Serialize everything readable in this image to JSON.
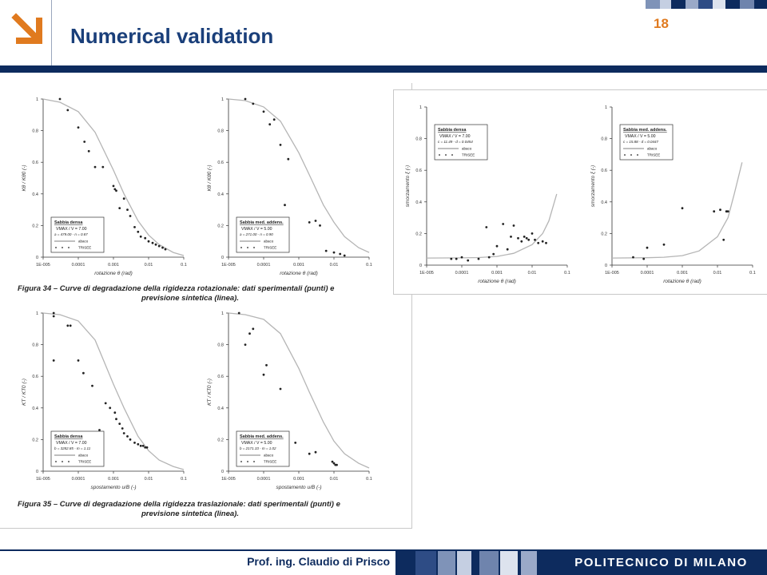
{
  "slide": {
    "title": "Numerical validation",
    "page_number": "18",
    "author": "Prof. ing. Claudio di Prisco",
    "institution": "POLITECNICO DI MILANO",
    "colors": {
      "navy": "#0d2b5e",
      "title": "#1a3f7a",
      "accent": "#e07a1f"
    }
  },
  "figures": {
    "fig34_caption_line1": "Figura 34 – Curve di degradazione della rigidezza rotazionale: dati sperimentali (punti) e",
    "fig34_caption_line2": "previsione sintetica (linea).",
    "fig35_caption_line1": "Figura 35 – Curve di degradazione della rigidezza traslazionale: dati sperimentali (punti) e",
    "fig35_caption_line2": "previsione sintetica (linea)."
  },
  "chart_data": [
    {
      "type": "scatter",
      "xlabel": "rotazione θ (rad)",
      "ylabel": "Kθ / Kθ0 (-)",
      "xscale": "log",
      "xlim": [
        1e-05,
        0.1
      ],
      "ylim": [
        0,
        1
      ],
      "x_ticks": [
        "1E-005",
        "0.0001",
        "0.001",
        "0.01",
        "0.1"
      ],
      "y_ticks": [
        "0",
        "0.2",
        "0.4",
        "0.6",
        "0.8",
        "1"
      ],
      "legend": {
        "title": "Sabbia densa",
        "line2": "VMAX / V = 7.00",
        "line3": "a = 479.00 - n = 0.87",
        "line_label": "abaco",
        "points_label": "TRISEE",
        "placement": "bottom-left"
      },
      "series": [
        {
          "name": "abaco",
          "kind": "line",
          "x": [
            1e-05,
            3e-05,
            0.0001,
            0.0003,
            0.001,
            0.002,
            0.005,
            0.01,
            0.02,
            0.05,
            0.1
          ],
          "y": [
            1.0,
            0.98,
            0.92,
            0.79,
            0.55,
            0.4,
            0.23,
            0.14,
            0.08,
            0.03,
            0.01
          ]
        },
        {
          "name": "TRISEE",
          "kind": "points",
          "x": [
            3e-05,
            5e-05,
            0.0001,
            0.00015,
            0.0002,
            0.0003,
            0.0005,
            0.001,
            0.0011,
            0.0012,
            0.0015,
            0.002,
            0.0025,
            0.003,
            0.004,
            0.005,
            0.006,
            0.008,
            0.01,
            0.013,
            0.016,
            0.02,
            0.025,
            0.03
          ],
          "y": [
            1.0,
            0.93,
            0.82,
            0.73,
            0.67,
            0.57,
            0.57,
            0.45,
            0.43,
            0.42,
            0.31,
            0.37,
            0.3,
            0.26,
            0.19,
            0.16,
            0.13,
            0.12,
            0.1,
            0.09,
            0.08,
            0.07,
            0.06,
            0.05
          ]
        }
      ]
    },
    {
      "type": "scatter",
      "xlabel": "rotazione θ (rad)",
      "ylabel": "Kθ / Kθ0 (-)",
      "xscale": "log",
      "xlim": [
        1e-05,
        0.1
      ],
      "ylim": [
        0,
        1
      ],
      "x_ticks": [
        "1E-005",
        "0.0001",
        "0.001",
        "0.01",
        "0.1"
      ],
      "y_ticks": [
        "0",
        "0.2",
        "0.4",
        "0.6",
        "0.8",
        "1"
      ],
      "legend": {
        "title": "Sabbia med. addens.",
        "line2": "VMAX / V = 5.00",
        "line3": "a = 271.00 - n = 0.90",
        "line_label": "abaco",
        "points_label": "TRISEE",
        "placement": "bottom-left"
      },
      "series": [
        {
          "name": "abaco",
          "kind": "line",
          "x": [
            1e-05,
            3e-05,
            0.0001,
            0.0003,
            0.001,
            0.002,
            0.005,
            0.01,
            0.02,
            0.05,
            0.1
          ],
          "y": [
            1.0,
            0.99,
            0.95,
            0.86,
            0.66,
            0.52,
            0.33,
            0.22,
            0.13,
            0.06,
            0.03
          ]
        },
        {
          "name": "TRISEE",
          "kind": "points",
          "x": [
            3e-05,
            5e-05,
            0.0001,
            0.00015,
            0.0002,
            0.0003,
            0.0005,
            0.0004,
            0.002,
            0.003,
            0.004,
            0.006,
            0.01,
            0.015,
            0.02
          ],
          "y": [
            1.0,
            0.97,
            0.92,
            0.84,
            0.87,
            0.71,
            0.62,
            0.33,
            0.22,
            0.23,
            0.2,
            0.04,
            0.03,
            0.02,
            0.01
          ]
        }
      ]
    },
    {
      "type": "scatter",
      "xlabel": "rotazione θ (rad)",
      "ylabel": "smorzamento ξ (-)",
      "xscale": "log",
      "xlim": [
        1e-05,
        0.1
      ],
      "ylim": [
        0,
        1
      ],
      "x_ticks": [
        "1E-005",
        "0.0001",
        "0.001",
        "0.01",
        "0.1"
      ],
      "y_ticks": [
        "0",
        "0.2",
        "0.4",
        "0.6",
        "0.8",
        "1"
      ],
      "legend": {
        "title": "Sabbia densa",
        "line2": "VMAX / V = 7.00",
        "line3": "c = 11.49 - d = 0.0454",
        "line_label": "abaco",
        "points_label": "TRISEE",
        "placement": "top-left"
      },
      "series": [
        {
          "name": "abaco",
          "kind": "line",
          "x": [
            1e-05,
            0.0001,
            0.0003,
            0.001,
            0.003,
            0.01,
            0.02,
            0.03,
            0.05
          ],
          "y": [
            0.045,
            0.046,
            0.048,
            0.055,
            0.075,
            0.13,
            0.2,
            0.28,
            0.45
          ]
        },
        {
          "name": "TRISEE",
          "kind": "points",
          "x": [
            5e-05,
            7e-05,
            0.0001,
            0.00015,
            0.0003,
            0.0005,
            0.0006,
            0.0008,
            0.001,
            0.0015,
            0.002,
            0.0025,
            0.003,
            0.004,
            0.005,
            0.006,
            0.007,
            0.008,
            0.01,
            0.012,
            0.015,
            0.02,
            0.025
          ],
          "y": [
            0.04,
            0.04,
            0.05,
            0.03,
            0.04,
            0.24,
            0.05,
            0.07,
            0.12,
            0.26,
            0.1,
            0.18,
            0.25,
            0.17,
            0.15,
            0.18,
            0.17,
            0.16,
            0.2,
            0.16,
            0.14,
            0.15,
            0.14
          ]
        }
      ]
    },
    {
      "type": "scatter",
      "xlabel": "rotazione θ (rad)",
      "ylabel": "smorzamento ξ (-)",
      "xscale": "log",
      "xlim": [
        1e-05,
        0.1
      ],
      "ylim": [
        0,
        1
      ],
      "x_ticks": [
        "1E-005",
        "0.0001",
        "0.001",
        "0.01",
        "0.1"
      ],
      "y_ticks": [
        "0",
        "0.2",
        "0.4",
        "0.6",
        "0.8",
        "1"
      ],
      "legend": {
        "title": "Sabbia med. addens.",
        "line2": "VMAX / V = 5.00",
        "line3": "c = 15.88 - d = 0.0447",
        "line_label": "abaco",
        "points_label": "TRISEE",
        "placement": "top-left"
      },
      "series": [
        {
          "name": "abaco",
          "kind": "line",
          "x": [
            1e-05,
            0.0001,
            0.0003,
            0.001,
            0.003,
            0.01,
            0.02,
            0.03,
            0.05
          ],
          "y": [
            0.045,
            0.047,
            0.05,
            0.06,
            0.09,
            0.18,
            0.3,
            0.45,
            0.65
          ]
        },
        {
          "name": "TRISEE",
          "kind": "points",
          "x": [
            4e-05,
            8e-05,
            0.0001,
            0.0003,
            0.001,
            0.008,
            0.012,
            0.015,
            0.018,
            0.02
          ],
          "y": [
            0.05,
            0.04,
            0.11,
            0.13,
            0.36,
            0.34,
            0.35,
            0.16,
            0.34,
            0.34
          ]
        }
      ]
    },
    {
      "type": "scatter",
      "xlabel": "spostamento u/B (-)",
      "ylabel": "KT / KT0 (-)",
      "xscale": "log",
      "xlim": [
        1e-05,
        0.1
      ],
      "ylim": [
        0,
        1
      ],
      "x_ticks": [
        "1E-005",
        "0.0001",
        "0.001",
        "0.01",
        "0.1"
      ],
      "y_ticks": [
        "0",
        "0.2",
        "0.4",
        "0.6",
        "0.8",
        "1"
      ],
      "legend": {
        "title": "Sabbia densa",
        "line2": "VMAX / V = 7.00",
        "line3": "b = 3282.85 - m = 1.11",
        "line_label": "abaco",
        "points_label": "TRISEE",
        "placement": "bottom-left"
      },
      "series": [
        {
          "name": "abaco",
          "kind": "line",
          "x": [
            1e-05,
            3e-05,
            0.0001,
            0.0003,
            0.001,
            0.002,
            0.005,
            0.01,
            0.02,
            0.05,
            0.1
          ],
          "y": [
            1.0,
            0.99,
            0.95,
            0.83,
            0.55,
            0.4,
            0.22,
            0.13,
            0.07,
            0.03,
            0.01
          ]
        },
        {
          "name": "TRISEE",
          "kind": "points",
          "x": [
            2e-05,
            2e-05,
            2e-05,
            5e-05,
            6e-05,
            0.0001,
            0.00014,
            0.00025,
            0.0004,
            0.0006,
            0.0008,
            0.0011,
            0.0012,
            0.0015,
            0.0018,
            0.002,
            0.0025,
            0.003,
            0.004,
            0.005,
            0.006,
            0.007,
            0.008,
            0.009
          ],
          "y": [
            1.0,
            0.98,
            0.7,
            0.92,
            0.92,
            0.7,
            0.62,
            0.54,
            0.26,
            0.43,
            0.4,
            0.37,
            0.33,
            0.3,
            0.27,
            0.24,
            0.22,
            0.2,
            0.18,
            0.17,
            0.16,
            0.16,
            0.15,
            0.15
          ]
        }
      ]
    },
    {
      "type": "scatter",
      "xlabel": "spostamento u/B (-)",
      "ylabel": "KT / KT0 (-)",
      "xscale": "log",
      "xlim": [
        1e-05,
        0.1
      ],
      "ylim": [
        0,
        1
      ],
      "x_ticks": [
        "1E-005",
        "0.0001",
        "0.001",
        "0.01",
        "0.1"
      ],
      "y_ticks": [
        "0",
        "0.2",
        "0.4",
        "0.6",
        "0.8",
        "1"
      ],
      "legend": {
        "title": "Sabbia med. addens.",
        "line2": "VMAX / V = 5.00",
        "line3": "b = 2171.33 - m = 1.02",
        "line_label": "abaco",
        "points_label": "TRISEE",
        "placement": "bottom-left"
      },
      "series": [
        {
          "name": "abaco",
          "kind": "line",
          "x": [
            1e-05,
            3e-05,
            0.0001,
            0.0003,
            0.001,
            0.002,
            0.005,
            0.01,
            0.02,
            0.05,
            0.1
          ],
          "y": [
            1.0,
            0.99,
            0.96,
            0.87,
            0.65,
            0.5,
            0.31,
            0.19,
            0.11,
            0.05,
            0.02
          ]
        },
        {
          "name": "TRISEE",
          "kind": "points",
          "x": [
            2e-05,
            3e-05,
            4e-05,
            5e-05,
            0.0001,
            0.00012,
            0.0003,
            0.0008,
            0.002,
            0.003,
            0.009,
            0.01,
            0.011,
            0.012
          ],
          "y": [
            1.0,
            0.8,
            0.87,
            0.9,
            0.61,
            0.67,
            0.52,
            0.18,
            0.11,
            0.12,
            0.06,
            0.05,
            0.04,
            0.04
          ]
        }
      ]
    }
  ]
}
